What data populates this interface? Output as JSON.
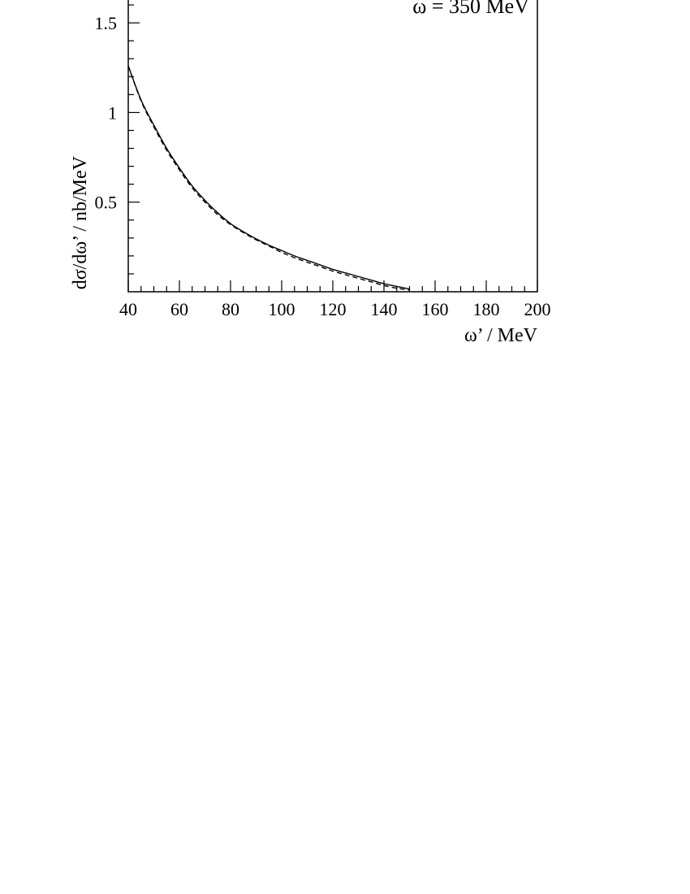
{
  "chart_data": {
    "type": "line",
    "annotation": "ω = 350 MeV",
    "xlabel": "ω’ / MeV",
    "ylabel": "dσ/dω’ / nb/MeV",
    "xlim": [
      40,
      200
    ],
    "ylim": [
      0,
      1.75
    ],
    "grid": false,
    "x_ticks": [
      40,
      60,
      80,
      100,
      120,
      140,
      160,
      180,
      200
    ],
    "x_tick_labels": [
      "40",
      "60",
      "80",
      "100",
      "120",
      "140",
      "160",
      "180",
      "200"
    ],
    "y_ticks": [
      0.5,
      1,
      1.5
    ],
    "y_tick_labels": [
      "0.5",
      "1",
      "1.5"
    ],
    "x_minor_step": 5,
    "y_minor_step": 0.1,
    "series": [
      {
        "style": "solid",
        "x": [
          40,
          45,
          50,
          55,
          60,
          65,
          70,
          75,
          80,
          85,
          90,
          95,
          100,
          105,
          110,
          115,
          120,
          125,
          130,
          135,
          140,
          145,
          150
        ],
        "y": [
          1.26,
          1.07,
          0.93,
          0.8,
          0.69,
          0.59,
          0.51,
          0.44,
          0.38,
          0.335,
          0.295,
          0.26,
          0.23,
          0.2,
          0.175,
          0.15,
          0.125,
          0.105,
          0.085,
          0.065,
          0.045,
          0.03,
          0.015
        ]
      },
      {
        "style": "dashed",
        "x": [
          40,
          45,
          50,
          55,
          60,
          65,
          70,
          75,
          80,
          85,
          90,
          95,
          100,
          105,
          110,
          115,
          120,
          125,
          130,
          135,
          140,
          145,
          150
        ],
        "y": [
          1.26,
          1.065,
          0.92,
          0.79,
          0.68,
          0.58,
          0.5,
          0.43,
          0.375,
          0.33,
          0.29,
          0.255,
          0.22,
          0.19,
          0.165,
          0.14,
          0.115,
          0.095,
          0.075,
          0.055,
          0.035,
          0.02,
          0.01
        ]
      }
    ]
  }
}
